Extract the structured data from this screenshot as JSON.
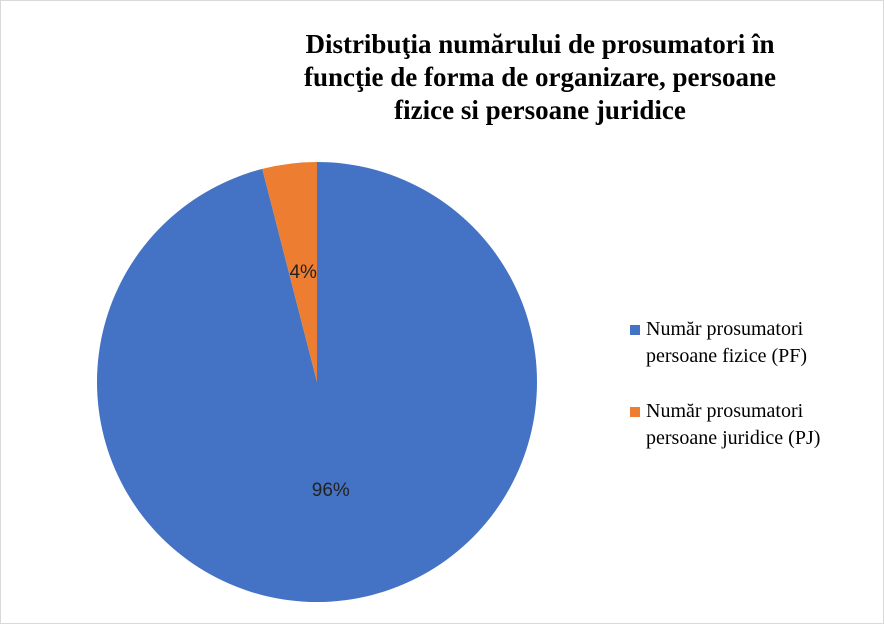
{
  "chart_data": {
    "type": "pie",
    "title": "Distribuţia numărului de prosumatori în funcţie de forma de organizare, persoane fizice si persoane juridice",
    "categories": [
      "Număr prosumatori persoane fizice (PF)",
      "Număr prosumatori persoane juridice (PJ)"
    ],
    "values": [
      96,
      4
    ],
    "value_labels": [
      "96%",
      "4%"
    ],
    "colors": [
      "#4472c4",
      "#ed7d31"
    ],
    "legend": "right"
  }
}
